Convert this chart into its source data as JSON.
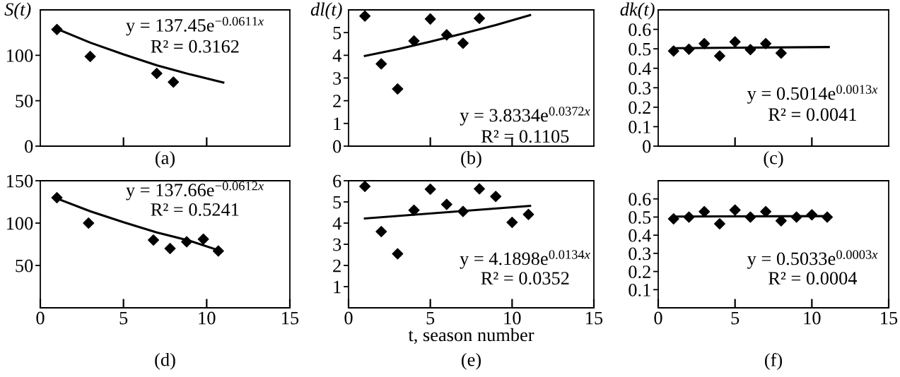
{
  "chart_data": [
    {
      "type": "scatter",
      "ylabel": "S(t)",
      "xlim": [
        0,
        15
      ],
      "xticks": [
        5,
        10
      ],
      "ylim": [
        0,
        150
      ],
      "yticks": [
        0,
        50,
        100
      ],
      "tick_labels": "y",
      "marker": "diamond",
      "series": [
        {
          "color": "#000000",
          "x": [
            1,
            3,
            7,
            8
          ],
          "values": [
            128.4,
            98.7,
            80,
            70.5
          ]
        },
        {
          "type": "line",
          "color": "#000000",
          "marker": "none",
          "x": [
            1,
            3,
            5,
            7,
            9,
            11
          ],
          "values": [
            129,
            114,
            101,
            89,
            79,
            70
          ]
        }
      ],
      "annotations": [
        "y = 137.45e$^{−0.0611x}$",
        "R² = 0.3162",
        "(a)"
      ]
    },
    {
      "type": "scatter",
      "ylabel": "dl(t)",
      "xlim": [
        0,
        15
      ],
      "xticks": [
        5,
        10
      ],
      "ylim": [
        0,
        6
      ],
      "yticks": [
        0,
        1,
        2,
        3,
        4,
        5
      ],
      "tick_labels": "y",
      "marker": "diamond",
      "series": [
        {
          "color": "#000000",
          "x": [
            1,
            2,
            3,
            4,
            5,
            6,
            7,
            8
          ],
          "values": [
            5.73,
            3.62,
            2.52,
            4.63,
            5.6,
            4.9,
            4.53,
            5.63
          ]
        },
        {
          "type": "line",
          "color": "#000000",
          "marker": "none",
          "x": [
            1,
            3,
            5,
            7,
            9,
            11.1
          ],
          "values": [
            3.97,
            4.27,
            4.6,
            4.96,
            5.33,
            5.77
          ]
        }
      ],
      "annotations": [
        "y = 3.8334e$^{0.0372x}$",
        "R² = 0.1105",
        "(b)"
      ]
    },
    {
      "type": "scatter",
      "ylabel": "dk(t)",
      "xlim": [
        0,
        15
      ],
      "xticks": [
        5,
        10
      ],
      "ylim": [
        0,
        0.7
      ],
      "yticks": [
        0,
        0.1,
        0.2,
        0.3,
        0.4,
        0.5,
        0.6
      ],
      "tick_labels": "y",
      "marker": "diamond",
      "series": [
        {
          "color": "#000000",
          "x": [
            1,
            2,
            3,
            4,
            5,
            6,
            7,
            8
          ],
          "values": [
            0.489,
            0.498,
            0.527,
            0.463,
            0.536,
            0.496,
            0.527,
            0.478
          ]
        },
        {
          "type": "line",
          "color": "#000000",
          "marker": "none",
          "x": [
            1,
            11.1
          ],
          "values": [
            0.503,
            0.509
          ]
        }
      ],
      "annotations": [
        "y = 0.5014e$^{0.0013x}$",
        "R² = 0.0041",
        "(c)"
      ]
    },
    {
      "type": "scatter",
      "xlim": [
        0,
        15
      ],
      "xticks": [
        0,
        5,
        10,
        15
      ],
      "ylim": [
        0,
        150
      ],
      "yticks": [
        50,
        100,
        150
      ],
      "marker": "diamond",
      "series": [
        {
          "color": "#000000",
          "x": [
            1,
            2.9,
            6.8,
            7.8,
            8.8,
            9.8,
            10.7
          ],
          "values": [
            130,
            100,
            80,
            70,
            78,
            81,
            67
          ]
        },
        {
          "type": "line",
          "color": "#000000",
          "marker": "none",
          "x": [
            1,
            3,
            5,
            7,
            9,
            10.7
          ],
          "values": [
            129,
            114,
            101,
            89,
            79,
            68
          ]
        }
      ],
      "annotations": [
        "y = 137.66e$^{−0.0612x}$",
        "R² = 0.5241",
        "(d)"
      ]
    },
    {
      "type": "scatter",
      "xlabel": "t, season number",
      "xlim": [
        0,
        15
      ],
      "xticks": [
        0,
        5,
        10,
        15
      ],
      "ylim": [
        0,
        6
      ],
      "yticks": [
        1,
        2,
        3,
        4,
        5,
        6
      ],
      "marker": "diamond",
      "series": [
        {
          "color": "#000000",
          "x": [
            1,
            2,
            3,
            4,
            5,
            6,
            7,
            8,
            9,
            10,
            11
          ],
          "values": [
            5.73,
            3.6,
            2.55,
            4.61,
            5.6,
            4.88,
            4.55,
            5.62,
            5.26,
            4.03,
            4.41
          ]
        },
        {
          "type": "line",
          "color": "#000000",
          "marker": "none",
          "x": [
            1,
            11.1
          ],
          "values": [
            4.22,
            4.81
          ]
        }
      ],
      "annotations": [
        "y = 4.1898e$^{0.0134x}$",
        "R² = 0.0352",
        "(e)"
      ]
    },
    {
      "type": "scatter",
      "xlim": [
        0,
        15
      ],
      "xticks": [
        0,
        5,
        10,
        15
      ],
      "ylim": [
        0,
        0.7
      ],
      "yticks": [
        0.1,
        0.2,
        0.3,
        0.4,
        0.5,
        0.6
      ],
      "marker": "diamond",
      "series": [
        {
          "color": "#000000",
          "x": [
            1,
            2,
            3,
            4,
            5,
            6,
            7,
            8,
            9,
            10,
            11
          ],
          "values": [
            0.49,
            0.5,
            0.53,
            0.463,
            0.539,
            0.5,
            0.53,
            0.479,
            0.5,
            0.512,
            0.5
          ]
        },
        {
          "type": "line",
          "color": "#000000",
          "marker": "none",
          "x": [
            1,
            11
          ],
          "values": [
            0.503,
            0.505
          ]
        }
      ],
      "annotations": [
        "y = 0.5033e$^{0.0003x}$",
        "R² = 0.0004",
        "(f)"
      ]
    }
  ]
}
